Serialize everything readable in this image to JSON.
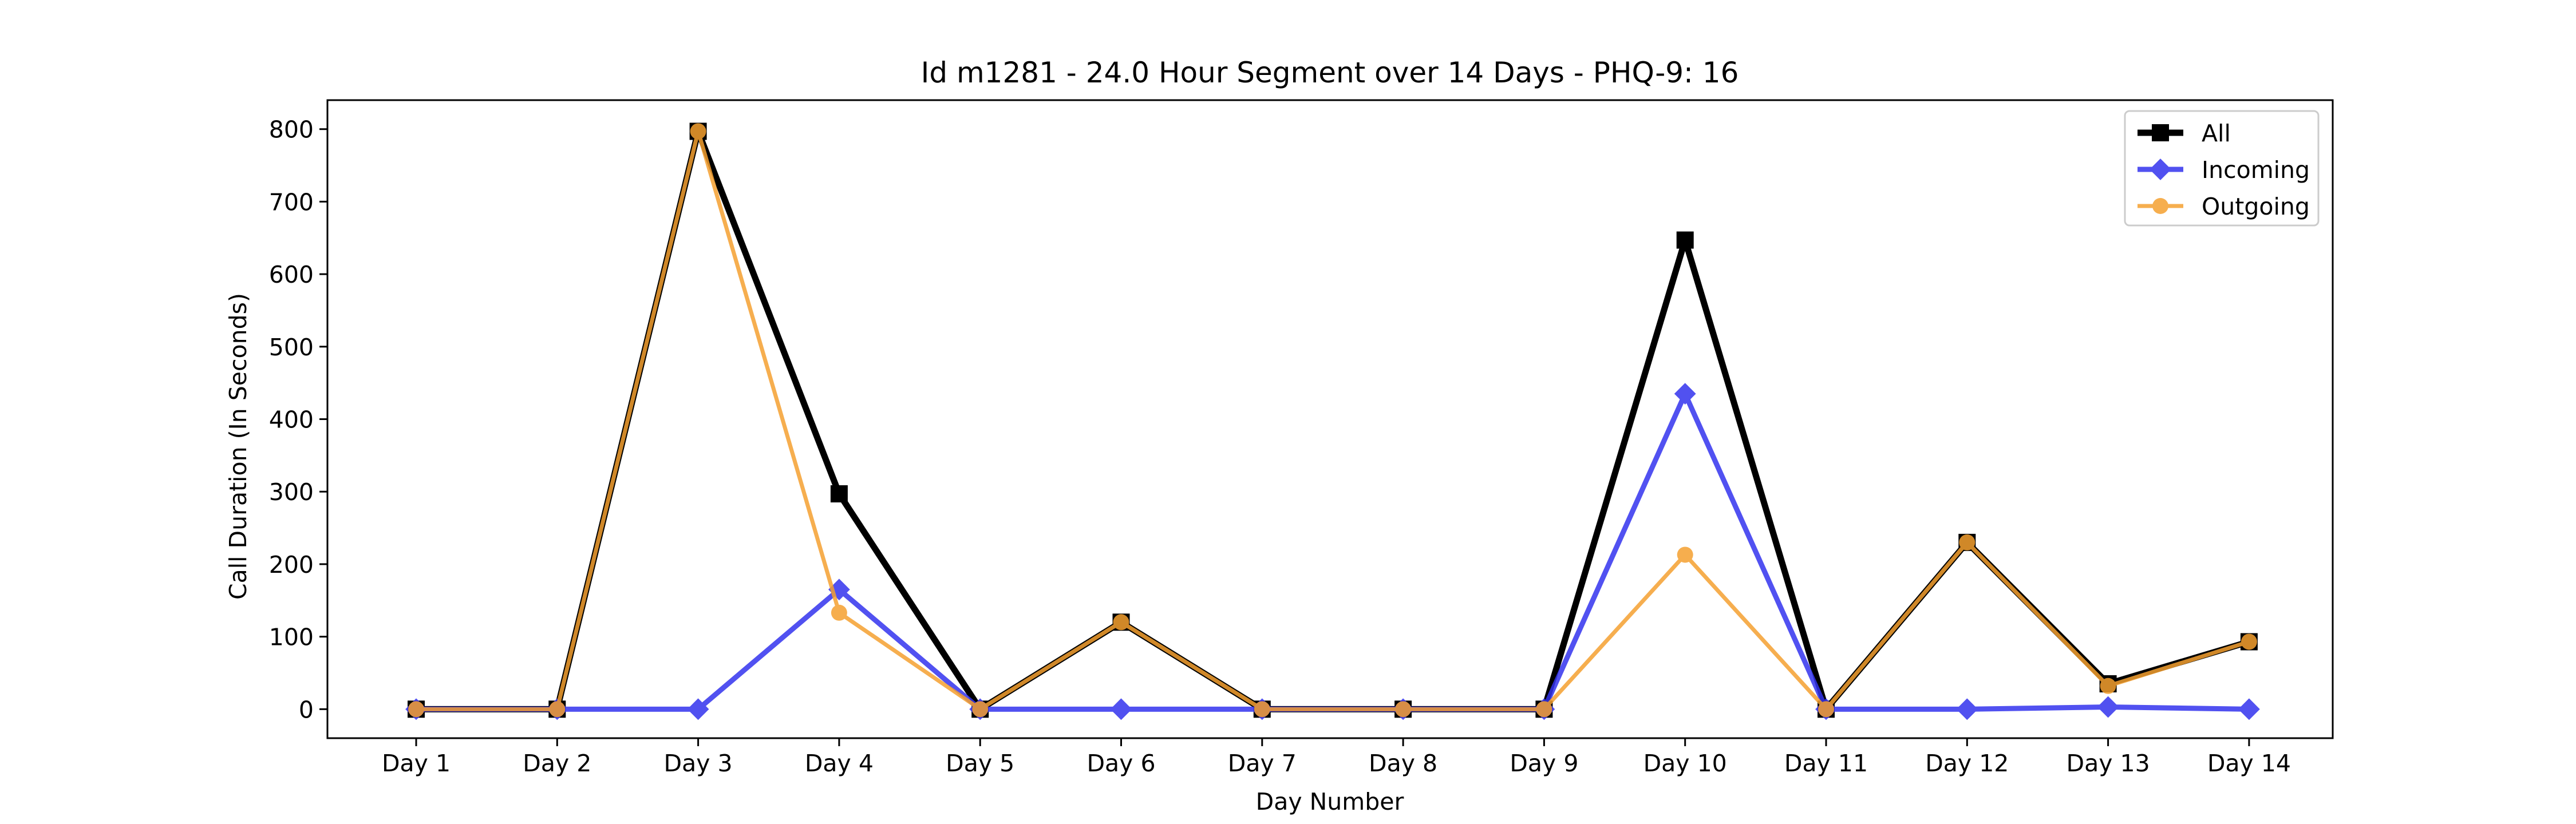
{
  "chart_data": {
    "type": "line",
    "title": "Id m1281 - 24.0 Hour Segment over 14 Days - PHQ-9: 16",
    "xlabel": "Day Number",
    "ylabel": "Call Duration (In Seconds)",
    "categories": [
      "Day 1",
      "Day 2",
      "Day 3",
      "Day 4",
      "Day 5",
      "Day 6",
      "Day 7",
      "Day 8",
      "Day 9",
      "Day 10",
      "Day 11",
      "Day 12",
      "Day 13",
      "Day 14"
    ],
    "ylim": [
      -40,
      840
    ],
    "yticks": [
      0,
      100,
      200,
      300,
      400,
      500,
      600,
      700,
      800
    ],
    "legend_position": "top-right",
    "grid": false,
    "series": [
      {
        "name": "All",
        "color": "#000000",
        "marker": "square",
        "values": [
          0,
          0,
          797,
          297,
          0,
          120,
          0,
          0,
          0,
          647,
          0,
          230,
          35,
          93
        ]
      },
      {
        "name": "Incoming",
        "color": "#3333ee",
        "marker": "diamond",
        "values": [
          0,
          0,
          0,
          165,
          0,
          0,
          0,
          0,
          0,
          435,
          0,
          0,
          3,
          0
        ]
      },
      {
        "name": "Outgoing",
        "color": "#f5a030",
        "marker": "circle",
        "values": [
          0,
          0,
          797,
          133,
          0,
          120,
          0,
          0,
          0,
          213,
          0,
          230,
          32,
          93
        ]
      }
    ]
  }
}
